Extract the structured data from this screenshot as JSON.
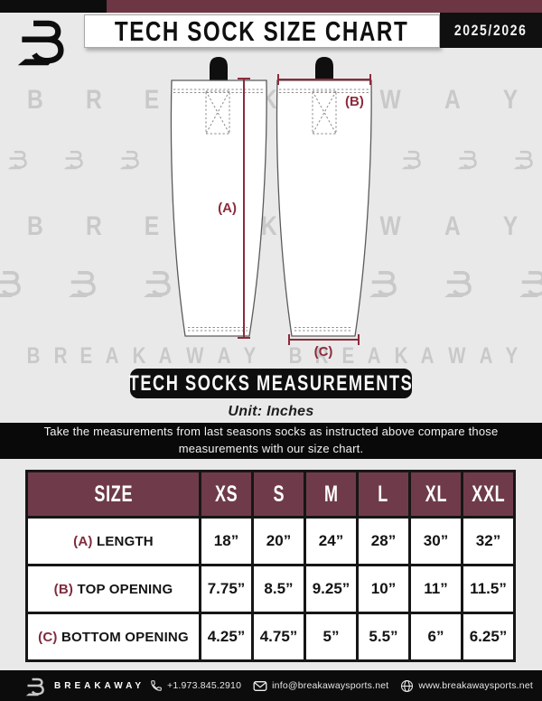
{
  "header": {
    "title": "TECH SOCK SIZE CHART",
    "season": "2025/2026"
  },
  "watermark": {
    "word": "BREAKAWAY"
  },
  "diagram": {
    "label_a": "(A)",
    "label_b": "(B)",
    "label_c": "(C)"
  },
  "banner": {
    "title": "TECH SOCKS MEASUREMENTS"
  },
  "unit_label": "Unit: Inches",
  "instruction": {
    "line1": "Take the measurements from last seasons socks as instructed above compare those",
    "line2": "measurements  with our size chart."
  },
  "table": {
    "header": [
      "SIZE",
      "XS",
      "S",
      "M",
      "L",
      "XL",
      "XXL"
    ],
    "rows": [
      {
        "prefix": "(A)",
        "label": "LENGTH",
        "values": [
          "18”",
          "20”",
          "24”",
          "28”",
          "30”",
          "32”"
        ]
      },
      {
        "prefix": "(B)",
        "label": "TOP OPENING",
        "values": [
          "7.75”",
          "8.5”",
          "9.25”",
          "10”",
          "11”",
          "11.5”"
        ]
      },
      {
        "prefix": "(C)",
        "label": "BOTTOM OPENING",
        "values": [
          "4.25”",
          "4.75”",
          "5”",
          "5.5”",
          "6”",
          "6.25”"
        ]
      }
    ]
  },
  "footer": {
    "brand": "BREAKAWAY",
    "phone": "+1.973.845.2910",
    "email": "info@breakawaysports.net",
    "website": "www.breakawaysports.net"
  },
  "colors": {
    "background": "#e8e9e8",
    "maroon_bar": "#6d3644",
    "maroon_table_header": "#6f3b4a",
    "measurement_accent": "#8c2b3c",
    "watermark_gray": "#c9c9c9",
    "black": "#0d0d0d"
  }
}
